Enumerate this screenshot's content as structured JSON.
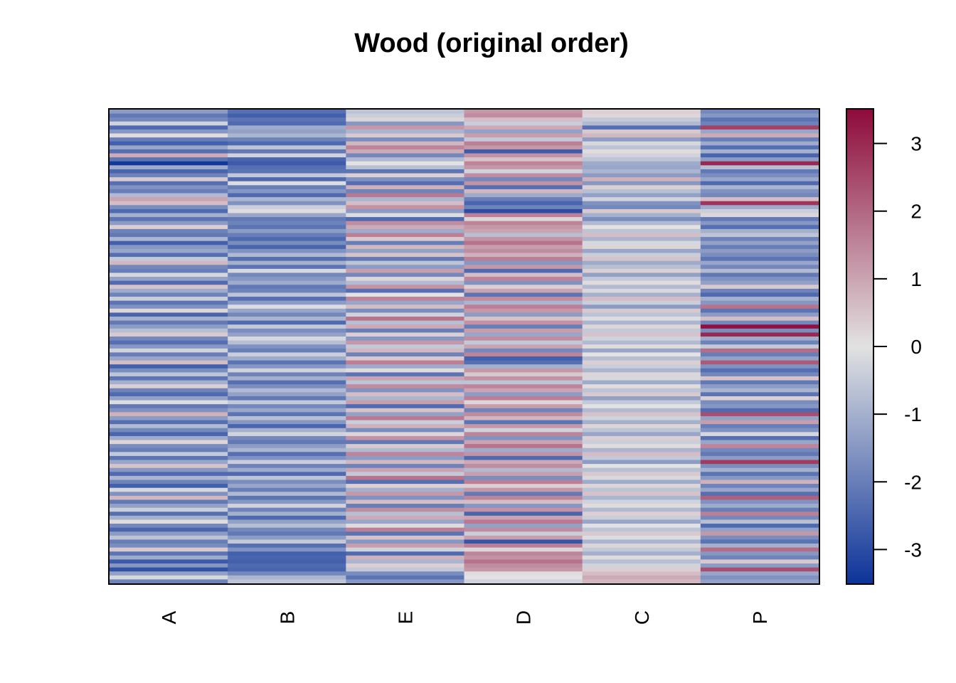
{
  "chart_data": {
    "type": "heatmap",
    "title": "Wood (original order)",
    "xlabel": "",
    "ylabel": "",
    "columns": [
      "A",
      "B",
      "E",
      "D",
      "C",
      "P"
    ],
    "row_count": 120,
    "legend_placement": "right",
    "color_scale": {
      "min": -3.5,
      "max": 3.5,
      "ticks": [
        3,
        2,
        1,
        0,
        -1,
        -2,
        -3
      ],
      "low_color": "#0c3399",
      "mid_color": "#e2e2e2",
      "high_color": "#8e0a3a"
    },
    "grid": false,
    "values": [
      [
        -1.4,
        -2.3,
        -0.6,
        1.2,
        0.3,
        -1.8
      ],
      [
        -2.1,
        -2.6,
        -0.4,
        1.4,
        0.2,
        -1.5
      ],
      [
        -1.8,
        -2.2,
        0.2,
        0.6,
        -0.5,
        -2.2
      ],
      [
        -0.3,
        -2.4,
        -1.5,
        -0.4,
        -0.8,
        -1.9
      ],
      [
        -2.4,
        -1.1,
        1.2,
        0.9,
        -2.3,
        2.6
      ],
      [
        -1.5,
        -1.3,
        -0.9,
        -1.3,
        0.4,
        -1.2
      ],
      [
        0.1,
        -0.9,
        0.4,
        1.1,
        0.7,
        0.9
      ],
      [
        -2.0,
        -1.9,
        -1.7,
        -0.5,
        -1.4,
        -2.0
      ],
      [
        -2.6,
        -2.4,
        0.7,
        1.6,
        -0.2,
        -1.1
      ],
      [
        -1.2,
        -0.6,
        1.5,
        1.2,
        -0.6,
        -2.3
      ],
      [
        -2.3,
        -2.1,
        0.9,
        -2.7,
        0.1,
        -1.0
      ],
      [
        0.9,
        -0.3,
        -1.8,
        1.3,
        -0.3,
        -2.5
      ],
      [
        -2.2,
        -2.5,
        -0.8,
        0.5,
        -0.6,
        -1.4
      ],
      [
        -3.4,
        -2.7,
        0.0,
        1.5,
        -1.1,
        3.0
      ],
      [
        -1.1,
        -2.3,
        -0.7,
        1.2,
        -1.2,
        -0.7
      ],
      [
        -2.5,
        -2.2,
        -2.2,
        -0.3,
        -0.9,
        -2.1
      ],
      [
        -1.9,
        -0.5,
        0.3,
        1.4,
        -1.4,
        -1.7
      ],
      [
        0.4,
        -2.4,
        -1.6,
        -1.8,
        0.8,
        -1.2
      ],
      [
        -2.3,
        -0.1,
        -2.3,
        1.3,
        -1.5,
        -2.4
      ],
      [
        -1.6,
        -2.0,
        0.8,
        -2.3,
        0.3,
        -0.9
      ],
      [
        -2.0,
        -1.5,
        -1.9,
        0.7,
        -0.7,
        -1.6
      ],
      [
        -0.8,
        -2.4,
        1.7,
        -1.1,
        -1.3,
        -1.8
      ],
      [
        1.0,
        -0.9,
        -0.9,
        -2.0,
        -0.3,
        0.6
      ],
      [
        0.6,
        -1.6,
        0.6,
        -2.5,
        -1.6,
        2.8
      ],
      [
        -1.7,
        -0.4,
        1.3,
        -1.9,
        -1.8,
        -1.1
      ],
      [
        -2.4,
        0.1,
        -1.4,
        -3.0,
        0.4,
        -0.4
      ],
      [
        -1.0,
        -1.2,
        -0.1,
        1.6,
        -1.0,
        0.2
      ],
      [
        -2.2,
        -2.1,
        -2.4,
        0.2,
        -1.7,
        -2.1
      ],
      [
        -1.4,
        -1.9,
        1.4,
        1.5,
        -0.8,
        -1.5
      ],
      [
        0.3,
        -2.2,
        0.9,
        1.2,
        0.0,
        -2.3
      ],
      [
        -1.9,
        -1.4,
        -1.1,
        1.0,
        -0.6,
        -1.0
      ],
      [
        -2.1,
        -2.0,
        1.6,
        -0.7,
        0.6,
        -0.6
      ],
      [
        -0.9,
        -2.4,
        0.4,
        1.3,
        -0.9,
        -1.9
      ],
      [
        -2.6,
        -1.7,
        -2.0,
        1.8,
        -0.2,
        -1.3
      ],
      [
        -1.5,
        -2.5,
        0.7,
        1.1,
        0.2,
        -2.0
      ],
      [
        -1.2,
        -1.6,
        -1.3,
        1.4,
        -1.2,
        -1.4
      ],
      [
        -2.3,
        -0.8,
        0.5,
        0.8,
        -0.4,
        -1.7
      ],
      [
        -0.5,
        -2.3,
        -2.1,
        1.6,
        0.5,
        -2.2
      ],
      [
        0.7,
        -1.0,
        -0.6,
        -1.5,
        -1.1,
        -1.2
      ],
      [
        -1.8,
        -2.2,
        -1.4,
        1.2,
        -0.7,
        -1.8
      ],
      [
        -2.0,
        -0.2,
        1.1,
        -2.4,
        0.3,
        -0.8
      ],
      [
        -0.2,
        -1.8,
        -1.8,
        0.6,
        -1.3,
        -2.1
      ],
      [
        -1.3,
        -1.5,
        0.2,
        1.5,
        -0.5,
        -1.6
      ],
      [
        -2.4,
        -1.1,
        -0.8,
        -1.6,
        0.1,
        -1.3
      ],
      [
        0.5,
        -2.1,
        1.3,
        0.3,
        -0.8,
        0.4
      ],
      [
        -1.1,
        -1.9,
        -2.3,
        1.0,
        -0.2,
        -1.9
      ],
      [
        -1.9,
        -0.6,
        0.0,
        -2.2,
        -1.0,
        -2.4
      ],
      [
        -0.4,
        -2.3,
        1.5,
        1.4,
        0.6,
        -1.0
      ],
      [
        -2.2,
        -1.4,
        -1.2,
        -0.9,
        -0.4,
        -1.5
      ],
      [
        -1.6,
        -0.1,
        0.6,
        1.6,
        -1.4,
        1.8
      ],
      [
        0.2,
        -1.2,
        -1.7,
        1.2,
        0.4,
        -2.2
      ],
      [
        -2.5,
        -1.8,
        -0.3,
        -1.4,
        -0.6,
        -1.4
      ],
      [
        -1.0,
        -0.9,
        1.8,
        0.5,
        -0.1,
        0.6
      ],
      [
        -2.1,
        -2.4,
        -0.7,
        1.3,
        -0.9,
        -1.8
      ],
      [
        -1.4,
        -0.5,
        0.9,
        -2.0,
        0.2,
        3.4
      ],
      [
        -0.7,
        -1.7,
        -2.0,
        1.1,
        -0.5,
        -1.7
      ],
      [
        0.4,
        -1.3,
        0.3,
        -1.2,
        0.5,
        3.0
      ],
      [
        -1.8,
        -0.2,
        -1.5,
        1.4,
        -0.3,
        -1.1
      ],
      [
        -2.3,
        -0.7,
        1.2,
        -0.5,
        -0.8,
        -1.9
      ],
      [
        -1.5,
        -1.6,
        -0.5,
        1.0,
        0.1,
        -0.5
      ],
      [
        -0.3,
        -2.0,
        0.7,
        -1.8,
        -1.2,
        1.9
      ],
      [
        -2.0,
        -0.4,
        -1.9,
        1.5,
        0.0,
        -2.0
      ],
      [
        -1.2,
        -1.1,
        0.4,
        -2.6,
        -0.7,
        -1.3
      ],
      [
        0.6,
        -2.2,
        1.6,
        -2.3,
        0.3,
        2.2
      ],
      [
        -2.6,
        -1.5,
        -1.1,
        -1.0,
        -0.4,
        -1.6
      ],
      [
        -1.7,
        -0.3,
        0.1,
        1.2,
        -0.9,
        -2.3
      ],
      [
        -0.6,
        -1.9,
        -2.2,
        0.4,
        0.2,
        -1.8
      ],
      [
        -2.2,
        -1.0,
        1.0,
        1.3,
        -0.2,
        0.5
      ],
      [
        -1.0,
        -2.3,
        -0.6,
        -0.6,
        -1.1,
        -2.1
      ],
      [
        0.3,
        -1.7,
        1.4,
        1.5,
        0.1,
        -1.4
      ],
      [
        -1.9,
        -0.8,
        -1.6,
        1.0,
        -0.6,
        -0.9
      ],
      [
        -2.4,
        -1.3,
        0.6,
        -1.4,
        0.4,
        -2.2
      ],
      [
        -1.3,
        -2.1,
        -0.9,
        1.6,
        -1.3,
        0.3
      ],
      [
        -0.1,
        -0.5,
        1.1,
        0.2,
        -0.5,
        -1.7
      ],
      [
        -2.1,
        -1.8,
        -2.4,
        1.1,
        0.0,
        -1.5
      ],
      [
        -1.6,
        -1.2,
        0.5,
        -1.9,
        -0.8,
        -2.4
      ],
      [
        0.8,
        -2.2,
        -1.3,
        1.4,
        0.5,
        2.4
      ],
      [
        -1.4,
        -0.7,
        1.7,
        0.7,
        -0.3,
        -1.3
      ],
      [
        -2.3,
        -1.5,
        -0.4,
        -2.2,
        -1.0,
        1.1
      ],
      [
        -0.8,
        -2.5,
        0.8,
        1.2,
        0.2,
        -2.0
      ],
      [
        -1.8,
        -1.0,
        -1.7,
        -0.3,
        -0.6,
        -1.6
      ],
      [
        -2.5,
        -0.3,
        0.2,
        1.5,
        -1.2,
        -0.2
      ],
      [
        -1.1,
        -1.8,
        1.3,
        -1.6,
        0.3,
        -2.3
      ],
      [
        0.2,
        -2.1,
        -2.1,
        1.0,
        -0.4,
        -1.2
      ],
      [
        -1.7,
        -1.4,
        0.4,
        1.8,
        0.1,
        1.5
      ],
      [
        -2.0,
        -0.9,
        -0.8,
        -1.1,
        -0.9,
        -1.8
      ],
      [
        -0.5,
        -2.3,
        1.5,
        1.3,
        0.6,
        -2.1
      ],
      [
        -2.2,
        -1.6,
        -1.4,
        -2.4,
        -0.5,
        -1.4
      ],
      [
        -1.2,
        -0.4,
        0.7,
        0.9,
        -1.4,
        2.7
      ],
      [
        0.5,
        -1.9,
        -1.9,
        1.4,
        0.0,
        -1.7
      ],
      [
        -1.5,
        -1.1,
        1.0,
        -0.8,
        -0.7,
        -1.0
      ],
      [
        -2.4,
        -2.4,
        -0.5,
        1.1,
        0.4,
        -2.2
      ],
      [
        -0.9,
        -0.6,
        1.8,
        -1.7,
        -0.2,
        -1.5
      ],
      [
        -1.9,
        -1.7,
        -2.3,
        1.6,
        -1.1,
        0.8
      ],
      [
        -2.6,
        -1.2,
        0.3,
        0.3,
        0.2,
        -1.9
      ],
      [
        -0.2,
        -2.0,
        -1.0,
        1.2,
        -0.6,
        -1.2
      ],
      [
        -1.6,
        -0.8,
        1.2,
        -2.1,
        0.5,
        -2.3
      ],
      [
        0.7,
        -2.2,
        -1.6,
        1.5,
        -0.9,
        2.1
      ],
      [
        -2.1,
        -1.5,
        0.6,
        0.6,
        -0.3,
        -1.6
      ],
      [
        -1.3,
        -0.3,
        -2.0,
        -1.5,
        0.1,
        -1.1
      ],
      [
        -0.4,
        -1.9,
        1.4,
        1.3,
        -0.8,
        -2.0
      ],
      [
        -2.3,
        -1.0,
        -0.7,
        -2.5,
        0.3,
        1.6
      ],
      [
        -1.0,
        -2.4,
        0.9,
        1.0,
        -0.4,
        -1.8
      ],
      [
        0.1,
        -1.3,
        -1.2,
        1.7,
        -1.2,
        -0.7
      ],
      [
        -1.8,
        -0.7,
        0.1,
        -1.3,
        0.0,
        -2.4
      ],
      [
        -2.5,
        -1.8,
        1.6,
        1.4,
        -0.6,
        -1.3
      ],
      [
        -1.4,
        -2.1,
        -2.2,
        -0.4,
        0.4,
        1.2
      ],
      [
        -0.6,
        -1.4,
        0.5,
        1.1,
        -0.1,
        -1.7
      ],
      [
        -2.0,
        -0.5,
        -1.5,
        -2.8,
        -0.9,
        -2.2
      ],
      [
        -1.7,
        -2.3,
        1.1,
        1.6,
        0.2,
        -1.0
      ],
      [
        0.4,
        -1.6,
        -0.3,
        0.2,
        -0.5,
        1.9
      ],
      [
        -2.2,
        -2.6,
        -2.4,
        1.5,
        -1.0,
        -1.5
      ],
      [
        -1.1,
        -2.5,
        0.8,
        1.3,
        0.1,
        -1.9
      ],
      [
        -2.7,
        -2.6,
        -0.9,
        1.8,
        -0.7,
        0.4
      ],
      [
        -1.5,
        -2.4,
        0.3,
        1.4,
        -0.3,
        -1.4
      ],
      [
        -2.9,
        -2.5,
        -0.5,
        1.2,
        0.3,
        2.4
      ],
      [
        -1.3,
        -1.8,
        -1.7,
        0.1,
        0.6,
        -1.2
      ],
      [
        -0.2,
        -0.9,
        -2.2,
        0.0,
        0.9,
        -1.6
      ],
      [
        -1.9,
        -0.6,
        -1.5,
        -0.3,
        0.7,
        -1.3
      ]
    ]
  }
}
